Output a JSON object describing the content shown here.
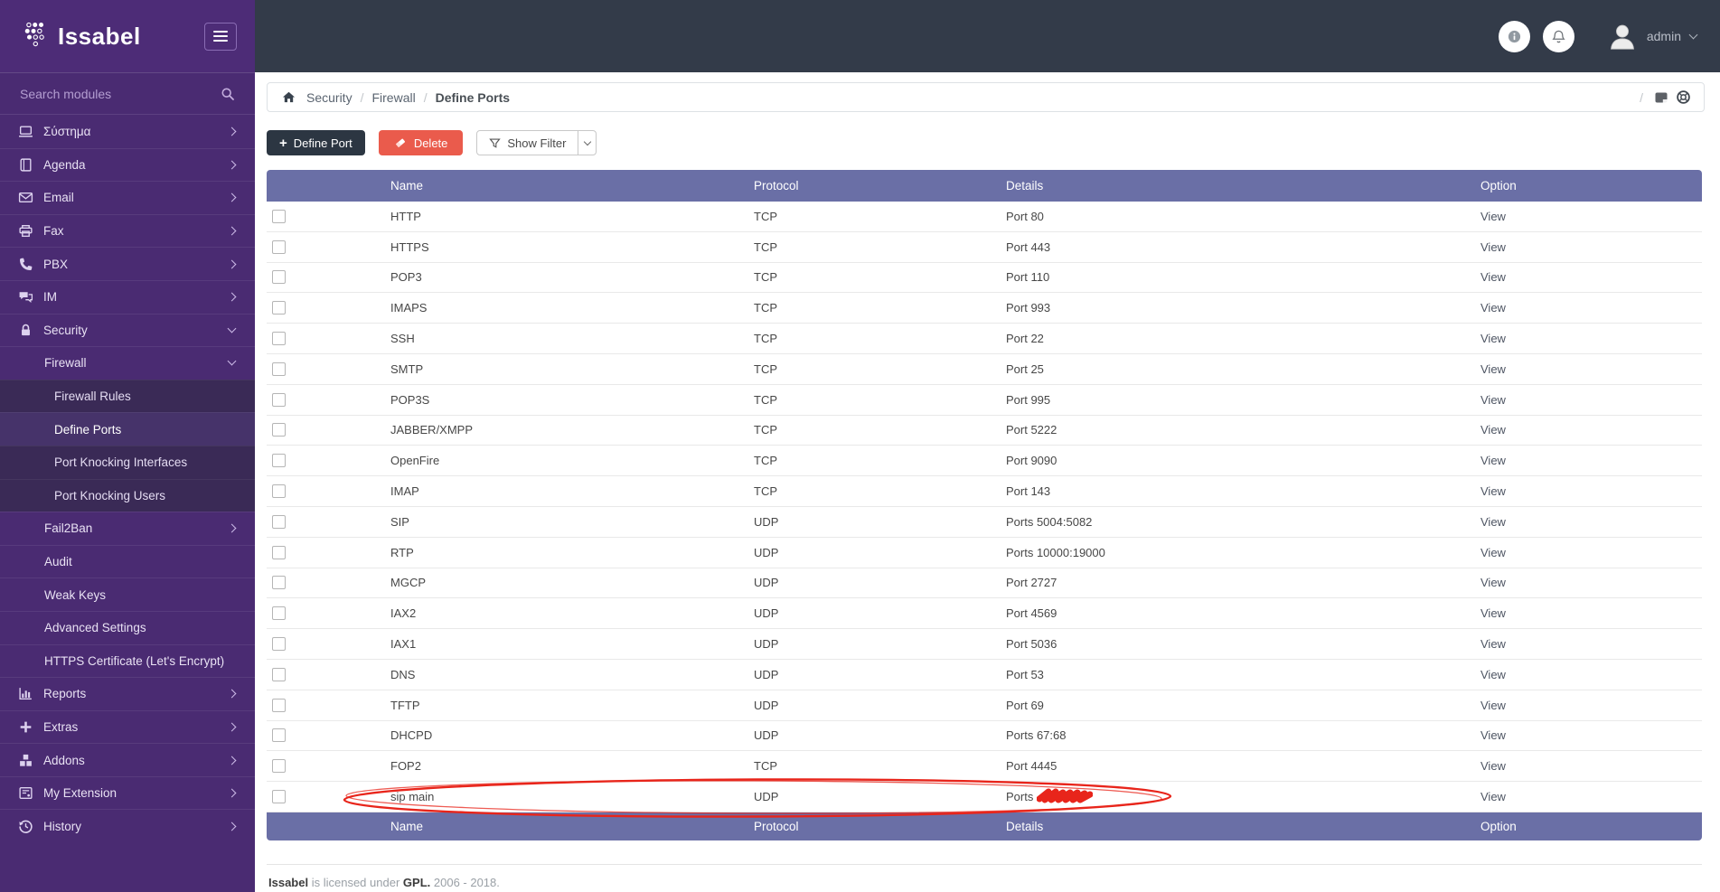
{
  "brand": {
    "name": "Issabel"
  },
  "topbar": {
    "user_name": "admin"
  },
  "sidebar": {
    "search_placeholder": "Search modules",
    "items": [
      {
        "label": "Σύστημα",
        "slug": "system",
        "level": 1,
        "icon": "system",
        "chevron": "right"
      },
      {
        "label": "Agenda",
        "slug": "agenda",
        "level": 1,
        "icon": "agenda",
        "chevron": "right"
      },
      {
        "label": "Email",
        "slug": "email",
        "level": 1,
        "icon": "email",
        "chevron": "right"
      },
      {
        "label": "Fax",
        "slug": "fax",
        "level": 1,
        "icon": "fax",
        "chevron": "right"
      },
      {
        "label": "PBX",
        "slug": "pbx",
        "level": 1,
        "icon": "pbx",
        "chevron": "right"
      },
      {
        "label": "IM",
        "slug": "im",
        "level": 1,
        "icon": "im",
        "chevron": "right"
      },
      {
        "label": "Security",
        "slug": "security",
        "level": 1,
        "icon": "security",
        "chevron": "down"
      },
      {
        "label": "Firewall",
        "slug": "firewall",
        "level": 2,
        "chevron": "down"
      },
      {
        "label": "Firewall Rules",
        "slug": "firewall-rules",
        "level": 3
      },
      {
        "label": "Define Ports",
        "slug": "define-ports",
        "level": 3,
        "active": true
      },
      {
        "label": "Port Knocking Interfaces",
        "slug": "port-knocking-interfaces",
        "level": 3
      },
      {
        "label": "Port Knocking Users",
        "slug": "port-knocking-users",
        "level": 3
      },
      {
        "label": "Fail2Ban",
        "slug": "fail2ban",
        "level": 2,
        "chevron": "right"
      },
      {
        "label": "Audit",
        "slug": "audit",
        "level": 2
      },
      {
        "label": "Weak Keys",
        "slug": "weak-keys",
        "level": 2
      },
      {
        "label": "Advanced Settings",
        "slug": "advanced-settings",
        "level": 2
      },
      {
        "label": "HTTPS Certificate (Let's Encrypt)",
        "slug": "https-certificate",
        "level": 2
      },
      {
        "label": "Reports",
        "slug": "reports",
        "level": 1,
        "icon": "reports",
        "chevron": "right"
      },
      {
        "label": "Extras",
        "slug": "extras",
        "level": 1,
        "icon": "extras",
        "chevron": "right"
      },
      {
        "label": "Addons",
        "slug": "addons",
        "level": 1,
        "icon": "addons",
        "chevron": "right"
      },
      {
        "label": "My Extension",
        "slug": "my-extension",
        "level": 1,
        "icon": "myextension",
        "chevron": "right"
      },
      {
        "label": "History",
        "slug": "history",
        "level": 1,
        "icon": "history",
        "chevron": "right"
      }
    ]
  },
  "breadcrumb": {
    "items": [
      "Security",
      "Firewall",
      "Define Ports"
    ],
    "separator": "/"
  },
  "toolbar": {
    "define_port_label": "Define Port",
    "delete_label": "Delete",
    "show_filter_label": "Show Filter"
  },
  "table": {
    "headers": [
      "Name",
      "Protocol",
      "Details",
      "Option"
    ],
    "view_label": "View",
    "rows": [
      {
        "name": "HTTP",
        "protocol": "TCP",
        "details": "Port 80"
      },
      {
        "name": "HTTPS",
        "protocol": "TCP",
        "details": "Port 443"
      },
      {
        "name": "POP3",
        "protocol": "TCP",
        "details": "Port 110"
      },
      {
        "name": "IMAPS",
        "protocol": "TCP",
        "details": "Port 993"
      },
      {
        "name": "SSH",
        "protocol": "TCP",
        "details": "Port 22"
      },
      {
        "name": "SMTP",
        "protocol": "TCP",
        "details": "Port 25"
      },
      {
        "name": "POP3S",
        "protocol": "TCP",
        "details": "Port 995"
      },
      {
        "name": "JABBER/XMPP",
        "protocol": "TCP",
        "details": "Port 5222"
      },
      {
        "name": "OpenFire",
        "protocol": "TCP",
        "details": "Port 9090"
      },
      {
        "name": "IMAP",
        "protocol": "TCP",
        "details": "Port 143"
      },
      {
        "name": "SIP",
        "protocol": "UDP",
        "details": "Ports 5004:5082"
      },
      {
        "name": "RTP",
        "protocol": "UDP",
        "details": "Ports 10000:19000"
      },
      {
        "name": "MGCP",
        "protocol": "UDP",
        "details": "Port 2727"
      },
      {
        "name": "IAX2",
        "protocol": "UDP",
        "details": "Port 4569"
      },
      {
        "name": "IAX1",
        "protocol": "UDP",
        "details": "Port 5036"
      },
      {
        "name": "DNS",
        "protocol": "UDP",
        "details": "Port 53"
      },
      {
        "name": "TFTP",
        "protocol": "UDP",
        "details": "Port 69"
      },
      {
        "name": "DHCPD",
        "protocol": "UDP",
        "details": "Ports 67:68"
      },
      {
        "name": "FOP2",
        "protocol": "TCP",
        "details": "Port 4445"
      },
      {
        "name": "sip main",
        "protocol": "UDP",
        "details": "Ports",
        "redacted": true
      }
    ]
  },
  "annotation": {
    "shape": "hand-drawn-ellipse",
    "target_row": "sip main",
    "color": "#e8251b"
  },
  "footer": {
    "brand": "Issabel",
    "text1": "is licensed under",
    "license": "GPL.",
    "years": "2006 - 2018."
  },
  "colors": {
    "sidebar": "#4a2b72",
    "sidebar_submenu": "#3a2a56",
    "sidebar_active": "#46336a",
    "topbar": "#333b49",
    "table_header": "#6a6fa6",
    "button_dark": "#2c3642",
    "button_delete": "#ea5b4c",
    "annotation_red": "#e8251b"
  }
}
